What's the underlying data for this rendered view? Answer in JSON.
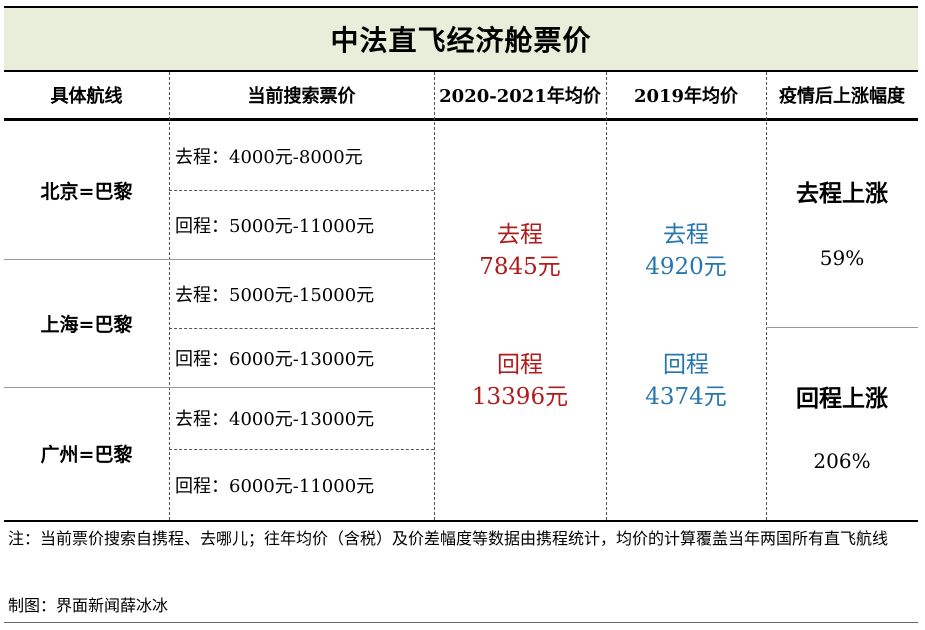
{
  "title": "中法直飞经济舱票价",
  "headers": [
    "具体航线",
    "当前搜索票价",
    "2020-2021年均价",
    "2019年均价",
    "疫情后上涨幅度"
  ],
  "routes": [
    {
      "name": "北京=巴黎",
      "outbound": "去程：4000元-8000元",
      "return": "回程：5000元-11000元"
    },
    {
      "name": "上海=巴黎",
      "outbound": "去程：5000元-15000元",
      "return": "回程：6000元-13000元"
    },
    {
      "name": "广州=巴黎",
      "outbound": "去程：4000元-13000元",
      "return": "回程：6000元-11000元"
    }
  ],
  "avg_2020_2021": {
    "out_label": "去程",
    "out_value": "7845元",
    "ret_label": "回程",
    "ret_value": "13396元"
  },
  "avg_2019": {
    "out_label": "去程",
    "out_value": "4920元",
    "ret_label": "回程",
    "ret_value": "4374元"
  },
  "increase": {
    "out_label": "去程上涨",
    "out_value": "59%",
    "ret_label": "回程上涨",
    "ret_value": "206%"
  },
  "note": "注：当前票价搜索自携程、去哪儿；往年均价（含税）及价差幅度等数据由携程统计，均价的计算覆盖当年两国所有直飞航线",
  "credit": "制图：界面新闻薛冰冰",
  "colors": {
    "title_bg": "#e8eed9",
    "red": "#b01c1c",
    "blue": "#2676b0"
  }
}
